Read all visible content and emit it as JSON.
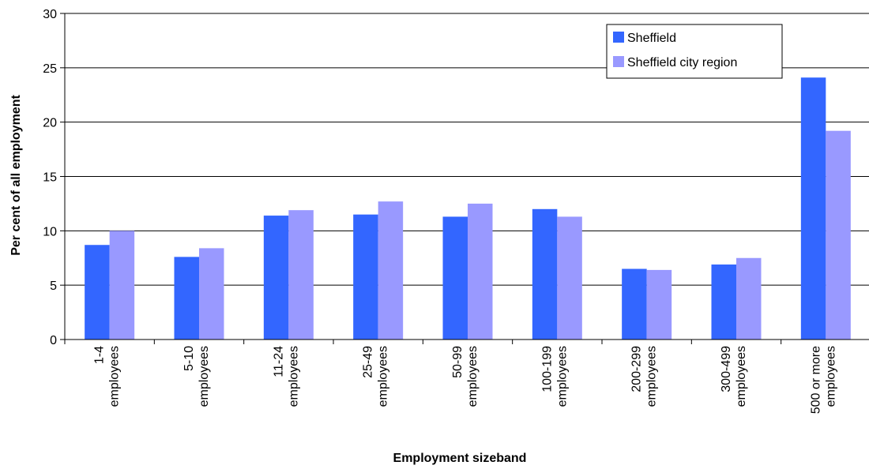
{
  "chart_data": {
    "type": "bar",
    "title": "",
    "xlabel": "Employment sizeband",
    "ylabel": "Per cent of all employment",
    "ylim": [
      0,
      30
    ],
    "yticks": [
      0,
      5,
      10,
      15,
      20,
      25,
      30
    ],
    "grid": true,
    "legend_position": "top-right",
    "categories": [
      [
        "1-4",
        "employees"
      ],
      [
        "5-10",
        "employees"
      ],
      [
        "11-24",
        "employees"
      ],
      [
        "25-49",
        "employees"
      ],
      [
        "50-99",
        "employees"
      ],
      [
        "100-199",
        "employees"
      ],
      [
        "200-299",
        "employees"
      ],
      [
        "300-499",
        "employees"
      ],
      [
        "500 or more",
        "employees"
      ]
    ],
    "series": [
      {
        "name": "Sheffield",
        "color": "#3366FF",
        "values": [
          8.7,
          7.6,
          11.4,
          11.5,
          11.3,
          12.0,
          6.5,
          6.9,
          24.1
        ]
      },
      {
        "name": "Sheffield city region",
        "color": "#9999FF",
        "values": [
          10.0,
          8.4,
          11.9,
          12.7,
          12.5,
          11.3,
          6.4,
          7.5,
          19.2
        ]
      }
    ]
  }
}
